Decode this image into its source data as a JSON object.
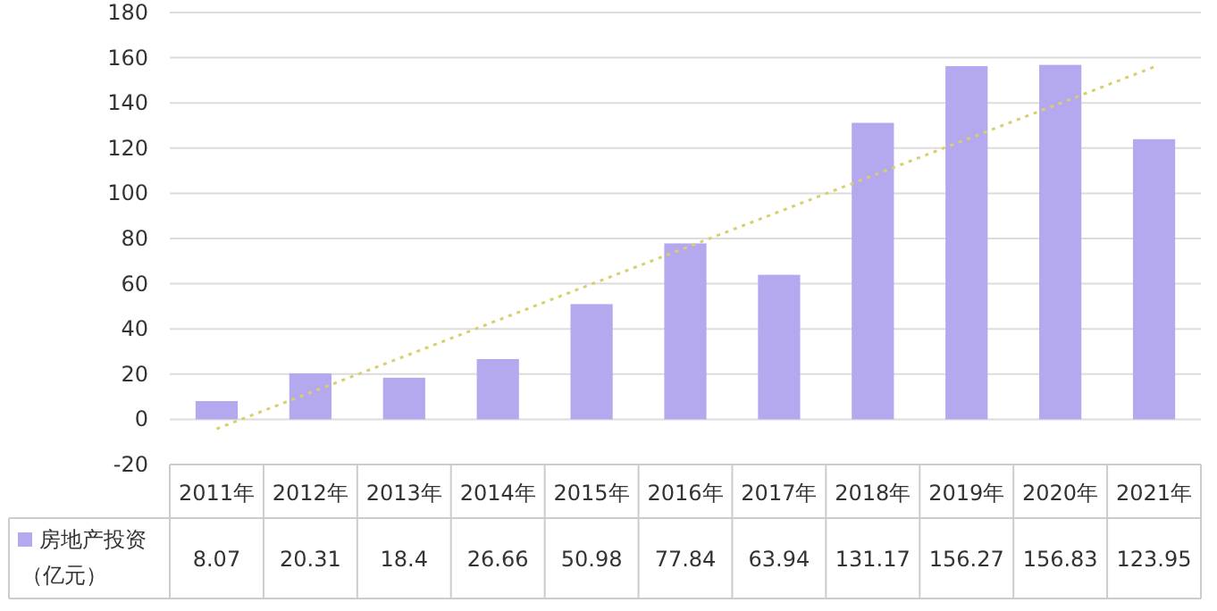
{
  "chart_data": {
    "type": "bar",
    "categories": [
      "2011年",
      "2012年",
      "2013年",
      "2014年",
      "2015年",
      "2016年",
      "2017年",
      "2018年",
      "2019年",
      "2020年",
      "2021年"
    ],
    "series": [
      {
        "name": "房地产投资（亿元）",
        "color": "#b4a8ee",
        "values": [
          8.07,
          20.31,
          18.4,
          26.66,
          50.98,
          77.84,
          63.94,
          131.17,
          156.27,
          156.83,
          123.95
        ],
        "value_labels": [
          "8.07",
          "20.31",
          "18.4",
          "26.66",
          "50.98",
          "77.84",
          "63.94",
          "131.17",
          "156.27",
          "156.83",
          "123.95"
        ]
      },
      {
        "type": "line",
        "color": "#d8cf6e",
        "line_style": "dotted",
        "x": [
          "2011年",
          "2021年"
        ],
        "values": [
          -4.2,
          155.9
        ]
      }
    ],
    "ylim": [
      -20,
      180
    ],
    "yticks": [
      -20,
      0,
      20,
      40,
      60,
      80,
      100,
      120,
      140,
      160,
      180
    ],
    "grid": "y",
    "legend": "bottom left"
  }
}
